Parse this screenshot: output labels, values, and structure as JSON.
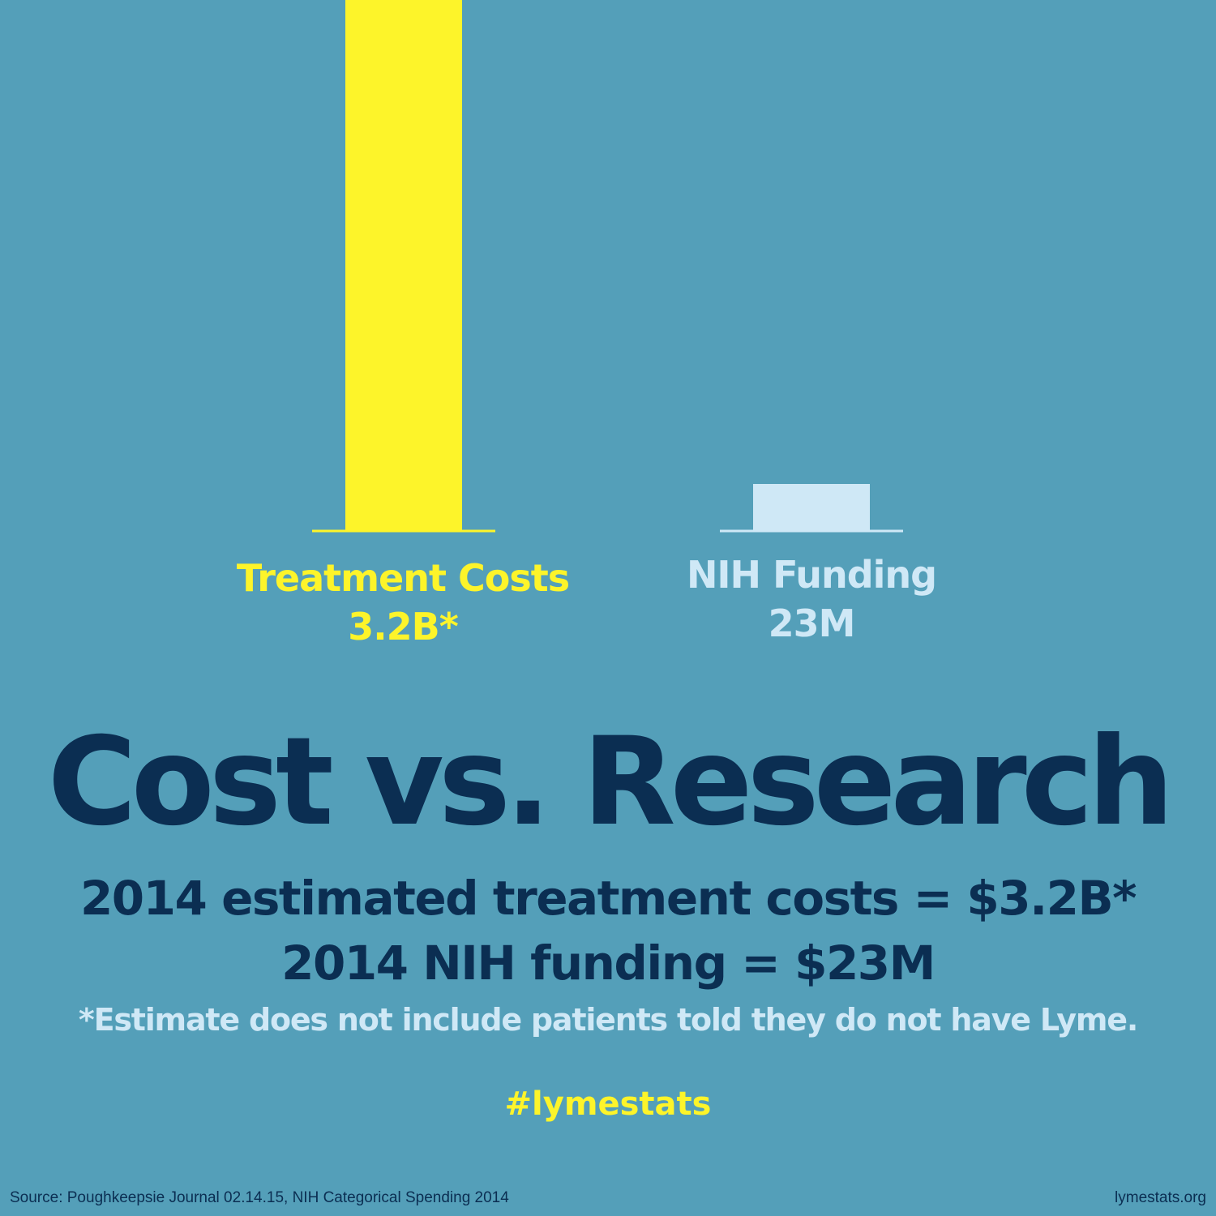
{
  "chart_data": {
    "type": "bar",
    "categories": [
      "Treatment Costs",
      "NIH Funding"
    ],
    "value_labels": [
      "3.2B*",
      "23M"
    ],
    "values": [
      3200000000,
      23000000
    ],
    "colors": [
      "#fdf42a",
      "#cfe8f6"
    ],
    "title": "Cost vs. Research"
  },
  "headline": "Cost vs. Research",
  "stats": [
    "2014 estimated treatment costs = $3.2B*",
    "2014 NIH funding = $23M"
  ],
  "footnote": "*Estimate does not include patients told they do not have Lyme.",
  "hashtag": "#lymestats",
  "source": "Source: Poughkeepsie Journal 02.14.15, NIH Categorical Spending 2014",
  "site": "lymestats.org",
  "colors": {
    "background": "#549fb9",
    "navy": "#0b2e52",
    "yellow": "#fdf42a",
    "light_blue": "#cfe8f6"
  }
}
